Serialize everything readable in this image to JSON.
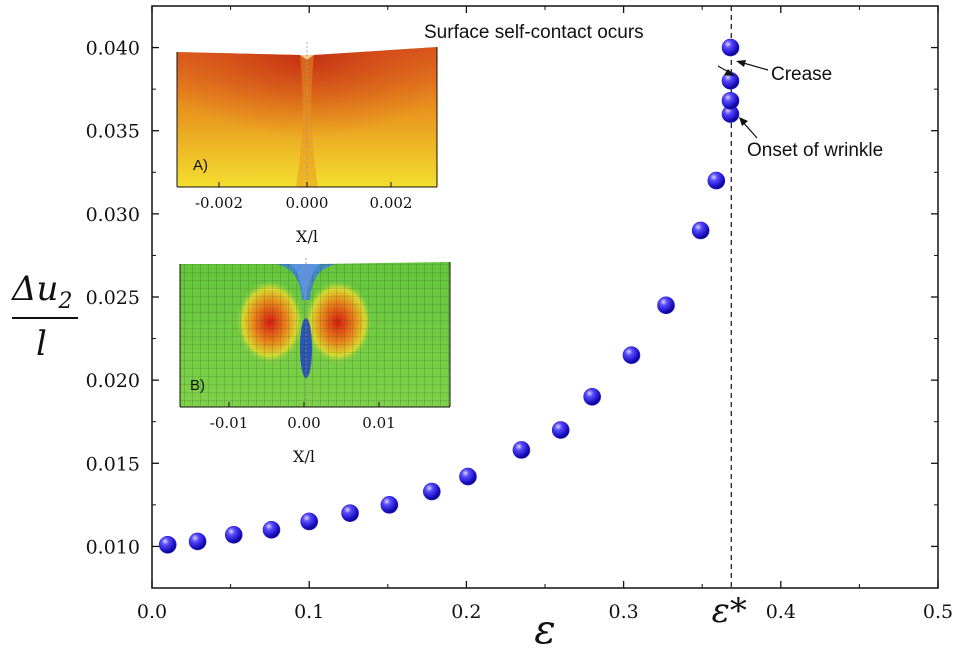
{
  "chart_data": {
    "type": "scatter",
    "xlabel": "ε",
    "ylabel": {
      "numerator": "Δu",
      "subscript": "2",
      "denominator": "l"
    },
    "xlim": [
      0,
      0.5
    ],
    "ylim": [
      0.0075,
      0.0425
    ],
    "x_ticks": [
      "0.0",
      "0.1",
      "0.2",
      "0.3",
      "0.4",
      "0.5"
    ],
    "y_ticks": [
      "0.010",
      "0.015",
      "0.020",
      "0.025",
      "0.030",
      "0.035",
      "0.040"
    ],
    "critical_strain": {
      "x": 0.3685,
      "label": "ε*",
      "line_style": "dashed"
    },
    "marker_color": "#2a1fd6",
    "points": {
      "x": [
        0.01,
        0.029,
        0.052,
        0.076,
        0.1,
        0.126,
        0.151,
        0.178,
        0.201,
        0.235,
        0.26,
        0.28,
        0.305,
        0.327,
        0.349,
        0.359,
        0.368,
        0.368,
        0.368,
        0.368
      ],
      "y": [
        0.0101,
        0.0103,
        0.0107,
        0.011,
        0.0115,
        0.012,
        0.0125,
        0.0133,
        0.0142,
        0.0158,
        0.017,
        0.019,
        0.0215,
        0.0245,
        0.029,
        0.032,
        0.036,
        0.0368,
        0.038,
        0.04
      ]
    },
    "annotations": [
      {
        "text": "Surface self-contact ocurs",
        "target": [
          0.368,
          0.038
        ]
      },
      {
        "text": "Crease",
        "target": [
          0.368,
          0.04
        ]
      },
      {
        "text": "Onset of wrinkle",
        "target": [
          0.368,
          0.036
        ]
      }
    ],
    "insets": [
      {
        "tag": "A)",
        "xlabel": "X/l",
        "x_ticks": [
          "-0.002",
          "0.000",
          "0.002"
        ],
        "colormap": "red-orange-yellow"
      },
      {
        "tag": "B)",
        "xlabel": "X/l",
        "x_ticks": [
          "-0.01",
          "0.00",
          "0.01"
        ],
        "colormap": "green-red-blue mesh"
      }
    ]
  }
}
